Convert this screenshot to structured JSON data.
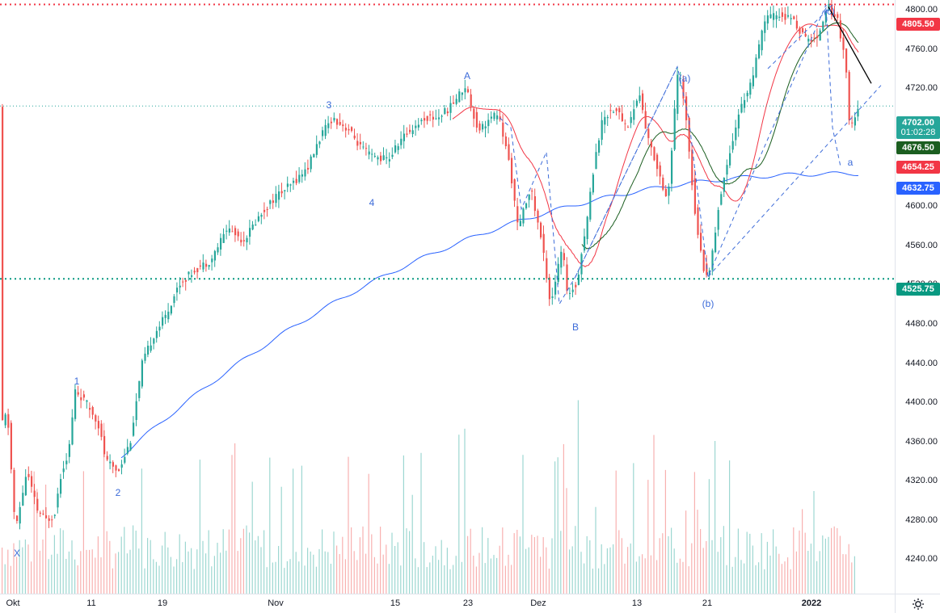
{
  "chart_data": {
    "type": "candlestick",
    "price_axis": {
      "ylim": [
        4205,
        4810
      ],
      "ticks": [
        "4240.00",
        "4280.00",
        "4320.00",
        "4360.00",
        "4400.00",
        "4440.00",
        "4480.00",
        "4520.00",
        "4560.00",
        "4600.00",
        "4640.00",
        "4680.00",
        "4720.00",
        "4760.00",
        "4800.00"
      ]
    },
    "time_axis": {
      "labels": [
        "Okt",
        "11",
        "19",
        "Nov",
        "15",
        "23",
        "Dez",
        "13",
        "21",
        "2022"
      ]
    },
    "badges": [
      {
        "name": "resistance-level-badge",
        "value": "4805.50",
        "color": "#f23645"
      },
      {
        "name": "last-price-badge",
        "value": "4702.00",
        "sub": "01:02:28",
        "color": "#26a69a"
      },
      {
        "name": "green-ma-badge",
        "value": "4676.50",
        "color": "#1b5e20"
      },
      {
        "name": "red-ma-badge",
        "value": "4654.25",
        "color": "#f23645"
      },
      {
        "name": "blue-ma-badge",
        "value": "4632.75",
        "color": "#2962ff"
      },
      {
        "name": "support-level-badge",
        "value": "4525.75",
        "color": "#089981"
      }
    ],
    "horizontal_lines": [
      {
        "name": "resistance-line",
        "value": 4805.5,
        "color": "#f23645",
        "style": "dotted"
      },
      {
        "name": "last-price-line",
        "value": 4702.0,
        "color": "#26a69a",
        "style": "dotted"
      },
      {
        "name": "support-line",
        "value": 4525.75,
        "color": "#089981",
        "style": "dotted"
      }
    ],
    "wave_labels": [
      {
        "text": "X",
        "x": "Okt 5",
        "y": 4255
      },
      {
        "text": "1",
        "x": "Okt 9",
        "y": 4430
      },
      {
        "text": "2",
        "x": "Okt 12",
        "y": 4310
      },
      {
        "text": "3",
        "x": "Nov 5",
        "y": 4715
      },
      {
        "text": "4",
        "x": "Nov 9",
        "y": 4610
      },
      {
        "text": "A",
        "x": "Nov 22",
        "y": 4747
      },
      {
        "text": "B",
        "x": "Dez 3",
        "y": 4489
      },
      {
        "text": "(a)",
        "x": "Dez 13",
        "y": 4745
      },
      {
        "text": "(b)",
        "x": "Dez 20",
        "y": 4510
      },
      {
        "text": "(c)",
        "x": "Jan 3",
        "y": 4818
      },
      {
        "text": "a",
        "x": "Jan 5",
        "y": 4647
      }
    ],
    "colors": {
      "up": "#26a69a",
      "down": "#ef5350",
      "ma_blue": "#2962ff",
      "ma_red": "#f23645",
      "ma_green": "#1b5e20",
      "wave": "#3d6cd9"
    }
  }
}
